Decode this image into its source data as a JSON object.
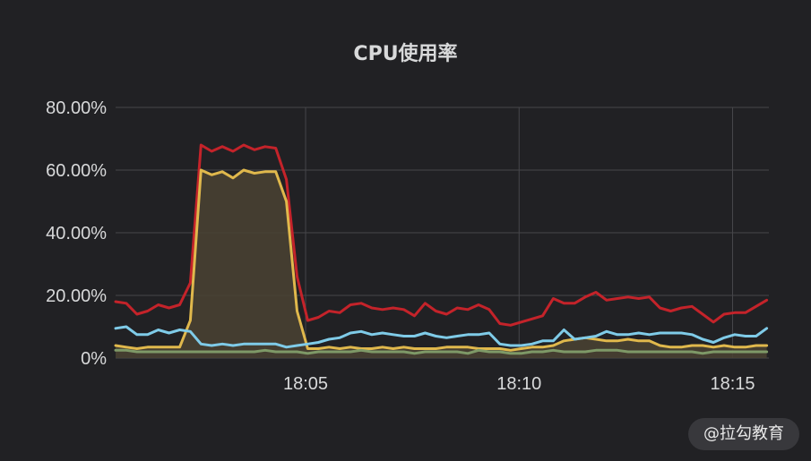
{
  "chart_data": {
    "type": "area",
    "title": "CPU使用率",
    "y_ticks": [
      "0%",
      "20.00%",
      "40.00%",
      "60.00%",
      "80.00%"
    ],
    "ylim": [
      0,
      80
    ],
    "x_ticks": [
      {
        "label": "18:05",
        "minute": 5
      },
      {
        "label": "18:10",
        "minute": 10
      },
      {
        "label": "18:15",
        "minute": 15
      }
    ],
    "xlim": [
      0.55,
      15.85
    ],
    "x_start_minute": 0.55,
    "x_step_minute": 0.25,
    "grid": true,
    "series": [
      {
        "color": "#c4232a",
        "fill": false,
        "values": [
          18,
          17.5,
          14,
          15,
          17,
          16,
          17,
          24,
          68,
          66,
          67.5,
          66,
          68,
          66.5,
          67.5,
          67,
          57,
          26,
          12,
          13,
          15,
          14.5,
          17,
          17.5,
          16,
          15.5,
          16,
          15.5,
          13.5,
          17.5,
          15,
          14,
          16,
          15.5,
          17,
          15.5,
          11,
          10.5,
          11.5,
          12.5,
          13.5,
          19,
          17.5,
          17.5,
          19.5,
          21,
          18.5,
          19,
          19.5,
          19,
          19.5,
          16,
          15,
          16,
          16.5,
          14,
          11.5,
          14,
          14.5,
          14.5,
          16.5,
          18.5
        ]
      },
      {
        "color": "#e0b84c",
        "fill": true,
        "fill_color": "#4a4232",
        "values": [
          4,
          3.5,
          3,
          3.5,
          3.5,
          3.5,
          3.5,
          12,
          60,
          58.5,
          59.5,
          57.5,
          60,
          59,
          59.5,
          59.5,
          50,
          15,
          3,
          3,
          3.5,
          3,
          3.5,
          3,
          3,
          3.5,
          3,
          3.5,
          3,
          3,
          3,
          3.5,
          3.5,
          3.5,
          3,
          3,
          3,
          2.5,
          3,
          3.5,
          3.5,
          4,
          5.5,
          6,
          6.5,
          6,
          5.5,
          5.5,
          6,
          5.5,
          5.5,
          4,
          3.5,
          3.5,
          4,
          4,
          3.5,
          4,
          3.5,
          3.5,
          4,
          4
        ]
      },
      {
        "color": "#7fcbe8",
        "fill": false,
        "values": [
          9.5,
          10,
          7.5,
          7.5,
          9,
          8,
          9,
          8.5,
          4.5,
          4,
          4.5,
          4,
          4.5,
          4.5,
          4.5,
          4.5,
          3.5,
          4,
          4.5,
          5,
          6,
          6.5,
          8,
          8.5,
          7.5,
          8,
          7.5,
          7,
          7,
          8,
          7,
          6.5,
          7,
          7.5,
          7.5,
          8,
          4.5,
          4,
          4,
          4.5,
          5.5,
          5.5,
          9,
          6,
          6.5,
          7,
          8.5,
          7.5,
          7.5,
          8,
          7.5,
          8,
          8,
          8,
          7.5,
          6,
          5,
          6.5,
          7.5,
          7,
          7,
          9.5
        ]
      },
      {
        "color": "#7e9967",
        "fill": false,
        "values": [
          2.5,
          2.5,
          2,
          2,
          2,
          2,
          2,
          2,
          2,
          2,
          2,
          2,
          2,
          2,
          2.5,
          2,
          2,
          2,
          1.5,
          2,
          2,
          2,
          2,
          2.5,
          2,
          2,
          2,
          2,
          1.5,
          2,
          2,
          2,
          2,
          1.5,
          2.5,
          2,
          2,
          1.5,
          1.5,
          2,
          2,
          2.5,
          2,
          2,
          2,
          2.5,
          2.5,
          2.5,
          2,
          2,
          2,
          2,
          2,
          2,
          2,
          1.5,
          2,
          2,
          2,
          2,
          2,
          2
        ]
      }
    ]
  },
  "watermark": "@拉勾教育"
}
